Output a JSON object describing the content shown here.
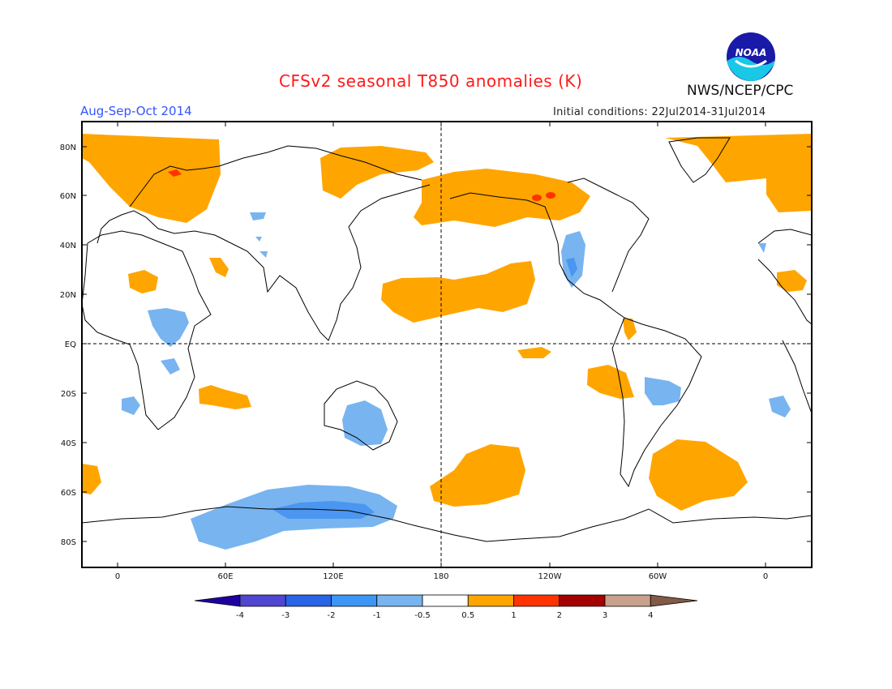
{
  "header": {
    "title": "CFSv2 seasonal T850 anomalies (K)",
    "period": "Aug-Sep-Oct 2014",
    "initial_conditions": "Initial conditions: 22Jul2014-31Jul2014",
    "agency": "NWS/NCEP/CPC",
    "logo_text": "NOAA"
  },
  "map": {
    "lat_labels": [
      "80N",
      "60N",
      "40N",
      "20N",
      "EQ",
      "20S",
      "40S",
      "60S",
      "80S"
    ],
    "lon_labels": [
      "0",
      "60E",
      "120E",
      "180",
      "120W",
      "60W",
      "0"
    ],
    "colors": {
      "ocean_land_bg": "#ffffff",
      "coast": "#000000",
      "warm_0_5_1": "#ffa500",
      "warm_1_2": "#ff3300",
      "cool_m1_m0_5": "#78b4f0",
      "cool_m2_m1": "#4a96f0"
    }
  },
  "legend": {
    "labels": [
      "-4",
      "-3",
      "-2",
      "-1",
      "-0.5",
      "0.5",
      "1",
      "2",
      "3",
      "4"
    ],
    "colors": [
      "#1e00a0",
      "#5046d2",
      "#2864e6",
      "#3c96f5",
      "#78b4f0",
      "#ffffff",
      "#ffa500",
      "#ff3300",
      "#a50000",
      "#c8a08c",
      "#825a46"
    ]
  }
}
